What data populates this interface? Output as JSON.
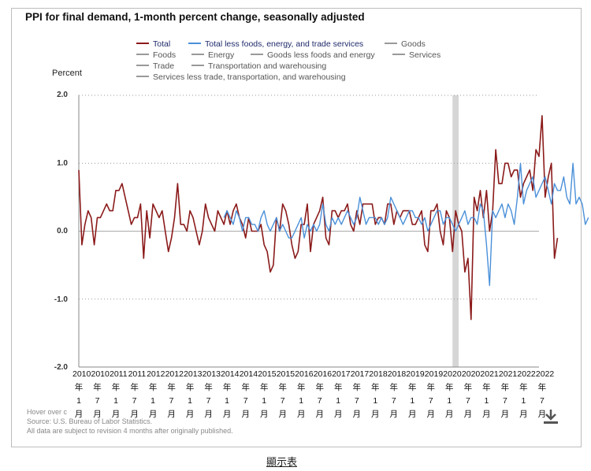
{
  "chart_data": {
    "type": "line",
    "title": "PPI for final demand, 1-month percent change, seasonally adjusted",
    "ylabel": "Percent",
    "xlabel": "",
    "ylim": [
      -2.0,
      2.0
    ],
    "y_ticks": [
      "2.0",
      "1.0",
      "0.0",
      "-1.0",
      "-2.0"
    ],
    "y_tick_values": [
      2.0,
      1.0,
      0.0,
      -1.0,
      -2.0
    ],
    "grid": "horizontal dotted",
    "legend_position": "top",
    "x_start": "2010-01",
    "x_end": "2022-06",
    "x_ticks": [
      {
        "year": "2010",
        "month": "1"
      },
      {
        "year": "2010",
        "month": "7"
      },
      {
        "year": "2011",
        "month": "1"
      },
      {
        "year": "2011",
        "month": "7"
      },
      {
        "year": "2012",
        "month": "1"
      },
      {
        "year": "2012",
        "month": "7"
      },
      {
        "year": "2013",
        "month": "1"
      },
      {
        "year": "2013",
        "month": "7"
      },
      {
        "year": "2014",
        "month": "1"
      },
      {
        "year": "2014",
        "month": "7"
      },
      {
        "year": "2015",
        "month": "1"
      },
      {
        "year": "2015",
        "month": "7"
      },
      {
        "year": "2016",
        "month": "1"
      },
      {
        "year": "2016",
        "month": "7"
      },
      {
        "year": "2017",
        "month": "1"
      },
      {
        "year": "2017",
        "month": "7"
      },
      {
        "year": "2018",
        "month": "1"
      },
      {
        "year": "2018",
        "month": "7"
      },
      {
        "year": "2019",
        "month": "1"
      },
      {
        "year": "2019",
        "month": "7"
      },
      {
        "year": "2020",
        "month": "1"
      },
      {
        "year": "2020",
        "month": "7"
      },
      {
        "year": "2021",
        "month": "1"
      },
      {
        "year": "2021",
        "month": "7"
      },
      {
        "year": "2022",
        "month": "1"
      },
      {
        "year": "2022",
        "month": "7"
      }
    ],
    "x_tick_year_suffix": "年",
    "x_tick_month_suffix": "月",
    "recession_band": {
      "start": "2020-02",
      "end": "2020-04"
    },
    "series": [
      {
        "name": "Total",
        "color": "#8b1a1a",
        "start": "2010-01",
        "values": [
          0.9,
          -0.2,
          0.1,
          0.3,
          0.2,
          -0.2,
          0.2,
          0.2,
          0.3,
          0.4,
          0.3,
          0.3,
          0.6,
          0.6,
          0.7,
          0.5,
          0.3,
          0.1,
          0.2,
          0.2,
          0.4,
          -0.4,
          0.3,
          -0.1,
          0.4,
          0.3,
          0.2,
          0.3,
          0.0,
          -0.3,
          -0.1,
          0.2,
          0.7,
          0.1,
          0.1,
          0.0,
          0.3,
          0.2,
          0.0,
          -0.2,
          0.0,
          0.4,
          0.2,
          0.1,
          0.0,
          0.3,
          0.2,
          0.1,
          0.3,
          0.1,
          0.3,
          0.4,
          0.2,
          0.1,
          -0.1,
          0.2,
          0.0,
          0.0,
          0.0,
          0.1,
          -0.2,
          -0.3,
          -0.6,
          -0.5,
          0.2,
          0.0,
          0.4,
          0.3,
          0.1,
          -0.2,
          -0.4,
          -0.3,
          0.1,
          0.1,
          0.4,
          -0.3,
          0.1,
          0.2,
          0.3,
          0.5,
          -0.1,
          -0.2,
          0.3,
          0.3,
          0.2,
          0.3,
          0.3,
          0.4,
          0.1,
          0.0,
          0.3,
          0.1,
          0.4,
          0.4,
          0.4,
          0.4,
          0.1,
          0.2,
          0.2,
          0.1,
          0.4,
          0.4,
          0.1,
          0.3,
          0.2,
          0.3,
          0.3,
          0.3,
          0.1,
          0.1,
          0.2,
          0.3,
          -0.2,
          -0.3,
          0.3,
          0.3,
          0.4,
          0.0,
          -0.2,
          0.3,
          0.2,
          -0.3,
          0.3,
          0.1,
          0.0,
          -0.6,
          -0.4,
          -1.3,
          0.5,
          0.3,
          0.6,
          0.2,
          0.6,
          0.0,
          0.3,
          1.2,
          0.7,
          0.7,
          1.0,
          1.0,
          0.8,
          0.9,
          0.9,
          0.5,
          0.7,
          0.8,
          0.9,
          0.6,
          1.2,
          1.1,
          1.7,
          0.5,
          0.8,
          1.0,
          -0.4,
          -0.1
        ]
      },
      {
        "name": "Total less foods, energy, and trade services",
        "color": "#4a90d9",
        "start": "2013-12",
        "values": [
          0.2,
          0.3,
          0.2,
          0.1,
          0.3,
          0.2,
          0.0,
          0.2,
          0.2,
          0.1,
          0.1,
          0.0,
          0.2,
          0.3,
          0.1,
          0.0,
          0.1,
          0.2,
          0.0,
          0.1,
          0.0,
          -0.1,
          -0.1,
          0.0,
          0.1,
          0.2,
          -0.1,
          0.1,
          0.0,
          0.1,
          0.0,
          0.1,
          0.4,
          0.1,
          0.0,
          0.2,
          0.1,
          0.2,
          0.1,
          0.2,
          0.3,
          0.2,
          0.1,
          0.2,
          0.5,
          0.3,
          0.1,
          0.2,
          0.2,
          0.2,
          0.1,
          0.2,
          0.1,
          0.2,
          0.5,
          0.4,
          0.3,
          0.2,
          0.1,
          0.2,
          0.3,
          0.3,
          0.2,
          0.2,
          0.1,
          0.2,
          0.0,
          0.1,
          0.2,
          0.3,
          0.3,
          0.1,
          0.2,
          0.2,
          0.1,
          0.0,
          0.1,
          0.2,
          0.3,
          0.1,
          0.2,
          0.2,
          0.1,
          0.4,
          0.3,
          -0.2,
          -0.8,
          0.3,
          0.2,
          0.3,
          0.4,
          0.2,
          0.4,
          0.3,
          0.1,
          0.5,
          1.0,
          0.4,
          0.6,
          0.7,
          0.8,
          0.5,
          0.6,
          0.7,
          0.8,
          0.6,
          0.4,
          0.7,
          0.6,
          0.6,
          0.8,
          0.5,
          0.4,
          1.0,
          0.4,
          0.5,
          0.4,
          0.1,
          0.2
        ]
      }
    ]
  },
  "legend": [
    {
      "label": "Total",
      "color": "#8b1a1a",
      "active": true
    },
    {
      "label": "Total less foods, energy, and trade services",
      "color": "#4a90d9",
      "active": true
    },
    {
      "label": "Goods",
      "color": "#999999",
      "active": false
    },
    {
      "label": "Foods",
      "color": "#999999",
      "active": false
    },
    {
      "label": "Energy",
      "color": "#999999",
      "active": false
    },
    {
      "label": "Goods less foods and energy",
      "color": "#999999",
      "active": false
    },
    {
      "label": "Services",
      "color": "#999999",
      "active": false
    },
    {
      "label": "Trade",
      "color": "#999999",
      "active": false
    },
    {
      "label": "Transportation and warehousing",
      "color": "#999999",
      "active": false
    },
    {
      "label": "Services less trade, transportation, and warehousing",
      "color": "#999999",
      "active": false
    }
  ],
  "notes": {
    "hover": "Hover over c",
    "source": "Source: U.S. Bureau of Labor Statistics.",
    "revision": "All data are subject to revision 4 months after originally published."
  },
  "show_table_label": "顯示表",
  "icons": {
    "download": "download-icon"
  }
}
